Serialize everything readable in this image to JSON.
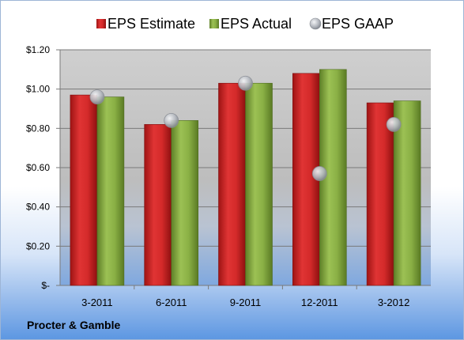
{
  "chart_data": {
    "type": "bar",
    "categories": [
      "3-2011",
      "6-2011",
      "9-2011",
      "12-2011",
      "3-2012"
    ],
    "series": [
      {
        "name": "EPS Estimate",
        "kind": "bar",
        "values": [
          0.97,
          0.82,
          1.03,
          1.08,
          0.93
        ],
        "color": "#d42a2a"
      },
      {
        "name": "EPS Actual",
        "kind": "bar",
        "values": [
          0.96,
          0.84,
          1.03,
          1.1,
          0.94
        ],
        "color": "#8ab045"
      },
      {
        "name": "EPS GAAP",
        "kind": "scatter",
        "values": [
          0.96,
          0.84,
          1.03,
          0.57,
          0.82
        ],
        "color": "#b9bcc3"
      }
    ],
    "y_ticks": [
      {
        "value": 0,
        "label": "$-"
      },
      {
        "value": 0.2,
        "label": "$0.20"
      },
      {
        "value": 0.4,
        "label": "$0.40"
      },
      {
        "value": 0.6,
        "label": "$0.60"
      },
      {
        "value": 0.8,
        "label": "$0.80"
      },
      {
        "value": 1.0,
        "label": "$1.00"
      },
      {
        "value": 1.2,
        "label": "$1.20"
      }
    ],
    "ylim": [
      0,
      1.2
    ],
    "grid": true,
    "legend_position": "top"
  },
  "footer": {
    "company": "Procter & Gamble"
  }
}
